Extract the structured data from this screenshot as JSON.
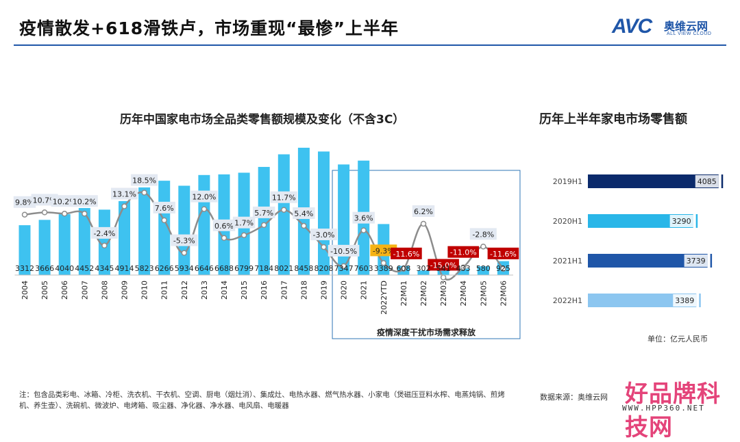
{
  "header": {
    "title": "疫情散发+618滑铁卢，市场重现“最惨”上半年",
    "logo_text": "AVC",
    "logo_cn": "奥维云网",
    "logo_en": "ALL VIEW CLOUD"
  },
  "chart_data": [
    {
      "type": "bar",
      "title": "历年中国家电市场全品类零售额规模及变化（不含3C）",
      "categories": [
        "2004",
        "2005",
        "2006",
        "2007",
        "2008",
        "2009",
        "2010",
        "2011",
        "2012",
        "2013",
        "2014",
        "2015",
        "2016",
        "2017",
        "2018",
        "2019",
        "2020",
        "2021",
        "2022YTD",
        "22M01",
        "22M02",
        "22M03",
        "22M04",
        "22M05",
        "22M06"
      ],
      "series": [
        {
          "type": "bar",
          "values": [
            3312,
            3666,
            4040,
            4452,
            4345,
            4914,
            5823,
            6266,
            5934,
            6646,
            6688,
            6799,
            7184,
            8021,
            8458,
            8208,
            7347,
            7603,
            3389,
            608,
            302,
            541,
            433,
            580,
            925
          ]
        },
        {
          "type": "line",
          "values": [
            9.8,
            10.7,
            10.2,
            10.2,
            -2.4,
            13.1,
            18.5,
            7.6,
            -5.3,
            12.0,
            0.6,
            1.7,
            5.7,
            11.7,
            5.4,
            -3.0,
            -10.5,
            3.6,
            -9.3,
            -11.6,
            6.2,
            -15.0,
            -11.0,
            -2.8,
            -11.6
          ]
        }
      ],
      "value_labels": [
        "3312",
        "3666",
        "4040",
        "4452",
        "4345",
        "4914",
        "5823",
        "6266",
        "5934",
        "6646",
        "6688",
        "6799",
        "7184",
        "8021",
        "8458",
        "8208",
        "7347",
        "7603",
        "3389",
        "608",
        "302",
        "541",
        "433",
        "580",
        "925"
      ],
      "pct_labels": [
        "9.8%",
        "10.7%",
        "10.2%",
        "10.2%",
        "-2.4%",
        "13.1%",
        "18.5%",
        "7.6%",
        "-5.3%",
        "12.0%",
        "0.6%",
        "1.7%",
        "5.7%",
        "11.7%",
        "5.4%",
        "-3.0%",
        "-10.5%",
        "3.6%",
        "-9.3%",
        "-11.6%",
        "6.2%",
        "-15.0%",
        "-11.0%",
        "-2.8%",
        "-11.6%"
      ],
      "highlight_labels": {
        "18": "ytd",
        "19": "red",
        "21": "red",
        "22": "red",
        "24": "red"
      },
      "annotation": "疫情深度干扰市场需求释放",
      "colors": {
        "bar": "#3ec2f0",
        "line": "#8c8c8c",
        "label_bg": "#e3e9f2",
        "red": "#c00000",
        "ytd": "#f6b313",
        "box": "#2e75b6"
      }
    },
    {
      "type": "bar",
      "orientation": "horizontal",
      "title": "历年上半年家电市场零售额",
      "categories": [
        "2019H1",
        "2020H1",
        "2021H1",
        "2022H1"
      ],
      "values": [
        4085,
        3290,
        3739,
        3389
      ],
      "labels": [
        "4085",
        "3290",
        "3739",
        "3389"
      ],
      "colors": [
        "#0b2a6b",
        "#29b6e8",
        "#1f56a8",
        "#8cc6f0"
      ],
      "unit": "单位：亿元人民币"
    }
  ],
  "footer": {
    "note": "注：包含品类彩电、冰箱、冷柜、洗衣机、干衣机、空调、厨电（烟灶消）、集成灶、电热水器、燃气热水器、小家电（煲磁压豆料水榨、电蒸炖锅、煎烤机、养生壶）、洗碗机、微波炉、电烤箱、吸尘器、净化器、净水器、电风扇、电暖器",
    "source": "数据来源：奥维云网",
    "watermark": "好品牌科技网",
    "watermark_url": "WWW.HPP360.NET"
  }
}
